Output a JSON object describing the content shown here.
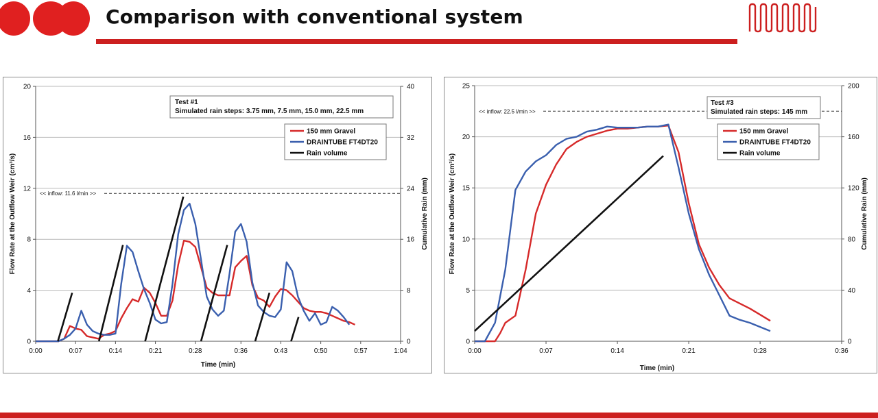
{
  "slide": {
    "title": "Comparison with conventional system",
    "colors": {
      "accent": "#cc1f1f"
    },
    "logo_icon": "drain-tube-icon",
    "dots_icon": "red-circles-icon"
  },
  "chart_data": [
    {
      "type": "line",
      "title": "Test #1",
      "subtitle": "Simulated rain steps: 3.75 mm, 7.5 mm, 15.0 mm, 22.5 mm",
      "xlabel": "Time (min)",
      "ylabel": "Flow Rate at the Outflow Weir (cm³/s)",
      "y2label": "Cumulative Rain (mm)",
      "xlim": [
        0,
        64
      ],
      "ylim": [
        0,
        20
      ],
      "y2lim": [
        0,
        40
      ],
      "xticks": [
        0,
        7,
        14,
        21,
        28,
        36,
        43,
        50,
        57,
        64
      ],
      "xtick_labels": [
        "0:00",
        "0:07",
        "0:14",
        "0:21",
        "0:28",
        "0:36",
        "0:43",
        "0:50",
        "0:57",
        "1:04"
      ],
      "yticks": [
        0,
        4,
        8,
        12,
        16,
        20
      ],
      "y2ticks": [
        0,
        8,
        16,
        24,
        32,
        40
      ],
      "grid": true,
      "legend_position": "top-right",
      "inflow_label": "<< inflow: 11.6 l/min >>",
      "inflow_value": 11.6,
      "series": [
        {
          "name": "150 mm Gravel",
          "color": "#d62a2a",
          "axis": "left",
          "x": [
            0,
            4,
            5,
            6,
            7,
            8,
            9,
            10,
            11,
            12,
            13,
            14,
            15,
            16,
            17,
            18,
            19,
            20,
            21,
            22,
            23,
            24,
            25,
            26,
            27,
            28,
            29,
            30,
            31,
            32,
            33,
            34,
            35,
            36,
            37,
            38,
            39,
            40,
            41,
            42,
            43,
            44,
            45,
            46,
            47,
            48,
            49,
            50,
            51,
            52,
            53,
            54,
            55,
            56
          ],
          "y": [
            0,
            0,
            0.2,
            1.2,
            1.0,
            0.9,
            0.4,
            0.3,
            0.2,
            0.5,
            0.6,
            0.8,
            1.8,
            2.6,
            3.3,
            3.1,
            4.2,
            3.8,
            3.0,
            2.0,
            2.0,
            3.2,
            6.0,
            7.9,
            7.8,
            7.4,
            5.8,
            4.2,
            3.8,
            3.6,
            3.6,
            3.6,
            5.8,
            6.3,
            6.7,
            4.4,
            3.4,
            3.2,
            2.7,
            3.5,
            4.1,
            4.0,
            3.6,
            3.1,
            2.6,
            2.4,
            2.3,
            2.3,
            2.2,
            2.0,
            1.8,
            1.6,
            1.5,
            1.3
          ]
        },
        {
          "name": "DRAINTUBE FT4DT20",
          "color": "#3a5fae",
          "axis": "left",
          "x": [
            0,
            4,
            5,
            6,
            7,
            8,
            9,
            10,
            11,
            12,
            13,
            14,
            15,
            16,
            17,
            18,
            19,
            20,
            21,
            22,
            23,
            24,
            25,
            26,
            27,
            28,
            29,
            30,
            31,
            32,
            33,
            34,
            35,
            36,
            37,
            38,
            39,
            40,
            41,
            42,
            43,
            44,
            45,
            46,
            47,
            48,
            49,
            50,
            51,
            52,
            53,
            54,
            55
          ],
          "y": [
            0,
            0,
            0.2,
            0.5,
            1.0,
            2.4,
            1.3,
            0.8,
            0.6,
            0.5,
            0.5,
            0.6,
            4.5,
            7.5,
            7.0,
            5.5,
            4.1,
            3.0,
            1.7,
            1.4,
            1.5,
            4.5,
            8.4,
            10.3,
            10.8,
            9.2,
            6.4,
            3.5,
            2.5,
            2.0,
            2.4,
            5.3,
            8.6,
            9.2,
            7.8,
            4.6,
            2.8,
            2.3,
            2.0,
            1.9,
            2.5,
            6.2,
            5.5,
            3.5,
            2.4,
            1.6,
            2.2,
            1.3,
            1.5,
            2.7,
            2.4,
            1.9,
            1.3
          ]
        },
        {
          "name": "Rain volume",
          "color": "#111111",
          "axis": "right",
          "segments": [
            {
              "x": [
                3.9,
                6.4
              ],
              "y": [
                0,
                7.6
              ]
            },
            {
              "x": [
                11.1,
                15.3
              ],
              "y": [
                0,
                15.1
              ]
            },
            {
              "x": [
                19.2,
                25.9
              ],
              "y": [
                0,
                22.7
              ]
            },
            {
              "x": [
                29.0,
                33.6
              ],
              "y": [
                0,
                15.1
              ]
            },
            {
              "x": [
                38.5,
                41.0
              ],
              "y": [
                0,
                7.6
              ]
            },
            {
              "x": [
                44.8,
                46.1
              ],
              "y": [
                0,
                3.8
              ]
            }
          ]
        }
      ]
    },
    {
      "type": "line",
      "title": "Test #3",
      "subtitle": "Simulated rain steps: 145 mm",
      "xlabel": "Time (min)",
      "ylabel": "Flow Rate at the Outflow Weir (cm³/s)",
      "y2label": "Cumulative Rain (mm)",
      "xlim": [
        0,
        36
      ],
      "ylim": [
        0,
        25
      ],
      "y2lim": [
        0,
        200
      ],
      "xticks": [
        0,
        7,
        14,
        21,
        28,
        36
      ],
      "xtick_labels": [
        "0:00",
        "0:07",
        "0:14",
        "0:21",
        "0:28",
        "0:36"
      ],
      "yticks": [
        0,
        5,
        10,
        15,
        20,
        25
      ],
      "y2ticks": [
        0,
        40,
        80,
        120,
        160,
        200
      ],
      "grid": true,
      "legend_position": "top-right",
      "inflow_label": "<< inflow: 22.5 l/min >>",
      "inflow_value": 22.5,
      "series": [
        {
          "name": "150 mm Gravel",
          "color": "#d62a2a",
          "axis": "left",
          "x": [
            0,
            2,
            2.5,
            3,
            4,
            5,
            6,
            7,
            8,
            9,
            10,
            11,
            12,
            13,
            14,
            15,
            16,
            17,
            18,
            19,
            20,
            21,
            22,
            23,
            24,
            25,
            26,
            27,
            28,
            29
          ],
          "y": [
            0,
            0,
            0.8,
            1.8,
            2.5,
            7.0,
            12.5,
            15.3,
            17.3,
            18.8,
            19.5,
            20.0,
            20.3,
            20.6,
            20.8,
            20.8,
            20.9,
            21.0,
            21.0,
            21.1,
            18.5,
            13.5,
            9.5,
            7.2,
            5.5,
            4.2,
            3.7,
            3.2,
            2.6,
            2.0
          ]
        },
        {
          "name": "DRAINTUBE FT4DT20",
          "color": "#3a5fae",
          "axis": "left",
          "x": [
            0,
            1,
            2,
            3,
            4,
            5,
            6,
            7,
            8,
            9,
            10,
            11,
            12,
            13,
            14,
            15,
            16,
            17,
            18,
            19,
            20,
            21,
            22,
            23,
            24,
            25,
            26,
            27,
            28,
            29
          ],
          "y": [
            0,
            0,
            1.8,
            7.0,
            14.8,
            16.6,
            17.6,
            18.2,
            19.2,
            19.8,
            20.0,
            20.5,
            20.7,
            21.0,
            20.9,
            20.9,
            20.9,
            21.0,
            21.0,
            21.2,
            17.0,
            12.5,
            9.0,
            6.5,
            4.5,
            2.5,
            2.1,
            1.8,
            1.4,
            1.0
          ]
        },
        {
          "name": "Rain volume",
          "color": "#111111",
          "axis": "right",
          "segments": [
            {
              "x": [
                0,
                18.5
              ],
              "y": [
                8,
                145
              ]
            }
          ]
        }
      ]
    }
  ]
}
